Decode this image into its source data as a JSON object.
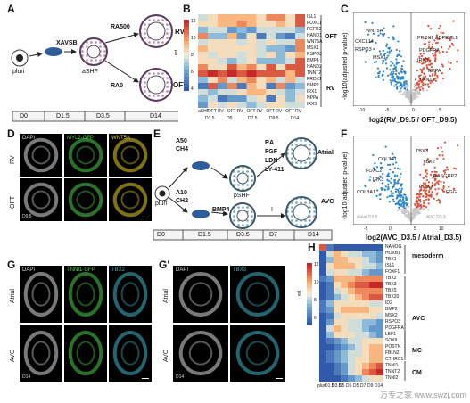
{
  "panelA": {
    "letter": "A",
    "pluri": "pluri",
    "xavsb": "XAVSB",
    "ashf": "aSHF",
    "ra500": "RA500",
    "ra0": "RA0",
    "rv": "RV",
    "oft": "OFT",
    "timeline": [
      "D0",
      "D1.5",
      "D3.5",
      "D14"
    ]
  },
  "panelB": {
    "letter": "B",
    "colorbar_label": "vst",
    "colorbar_ticks": [
      "12",
      "10",
      "8",
      "6",
      "4"
    ],
    "genes_oft": [
      "ISL1",
      "FOXC1",
      "FGFR2",
      "HAND1",
      "WNT5A",
      "MSX1",
      "RSPO3",
      "BMP4"
    ],
    "genes_rv": [
      "HAND2",
      "TNNT2",
      "PRDX1",
      "BMP2",
      "IRX1",
      "NPPA",
      "IRX3"
    ],
    "group_oft": "OFT",
    "group_rv": "RV",
    "col_labels": [
      "aSHF",
      "OFT",
      "RV",
      "OFT",
      "RV",
      "OFT",
      "RV",
      "OFT",
      "RV",
      "OFT",
      "RV"
    ],
    "day_labels": [
      "D3.5",
      "D5",
      "D7.5",
      "D9.5",
      "D14"
    ],
    "matrix": [
      [
        8,
        9,
        10,
        10,
        10,
        10,
        9,
        11,
        11,
        9,
        12
      ],
      [
        9,
        9,
        10,
        10,
        11,
        10,
        9,
        9,
        10,
        9,
        12
      ],
      [
        7,
        8,
        8,
        6,
        7,
        6,
        8,
        8,
        8,
        8,
        7
      ],
      [
        11,
        7,
        7,
        10,
        6,
        9,
        5,
        8,
        6,
        5,
        8
      ],
      [
        8,
        9,
        9,
        9,
        8,
        9,
        8,
        9,
        8,
        8,
        11
      ],
      [
        10,
        9,
        9,
        9,
        9,
        9,
        8,
        7,
        7,
        6,
        11
      ],
      [
        9,
        8,
        9,
        9,
        8,
        9,
        8,
        9,
        7,
        9,
        10
      ],
      [
        9,
        9,
        8,
        7,
        8,
        9,
        7,
        7,
        7,
        8,
        12
      ],
      [
        11,
        9,
        9,
        12,
        10,
        11,
        9,
        12,
        9,
        12,
        12
      ],
      [
        12,
        13,
        12,
        13,
        12,
        13,
        12,
        12,
        12,
        10,
        12
      ],
      [
        7,
        9,
        11,
        8,
        10,
        11,
        9,
        10,
        8,
        10,
        8
      ],
      [
        5,
        12,
        6,
        11,
        5,
        10,
        9,
        5,
        11,
        6,
        7
      ],
      [
        8,
        7,
        8,
        8,
        9,
        10,
        10,
        9,
        8,
        7,
        8
      ],
      [
        7,
        8,
        5,
        6,
        6,
        8,
        9,
        5,
        9,
        7,
        9
      ],
      [
        6,
        9,
        8,
        9,
        8,
        7,
        8,
        9,
        9,
        8,
        8
      ]
    ]
  },
  "panelC": {
    "letter": "C",
    "xlabel": "log2(RV_D9.5 / OFT_D9.5)",
    "ylabel": "-log10(adjusted p-value)",
    "left_genes": [
      "WNT5A",
      "CXCL14",
      "RSPO3",
      "MSX1"
    ],
    "right_genes": [
      "PRDX1",
      "ADPRHL1",
      "PDGFRA",
      "IRX3",
      "NPPA",
      "TNNT2"
    ],
    "xticks": [
      "-10",
      "-5",
      "0",
      "5"
    ]
  },
  "panelD": {
    "letter": "D",
    "rows": [
      "RV",
      "OFT"
    ],
    "cols": [
      "DAPI",
      "MYL2-GFP",
      "WNT5A"
    ],
    "day": "D9.5",
    "col_colors": [
      "#dddddd",
      "#4bd14b",
      "#e8d020"
    ]
  },
  "panelE": {
    "letter": "E",
    "a50": "A50",
    "ch4": "CH4",
    "a10": "A10",
    "ch2": "CH2",
    "bmp4": "BMP4",
    "pshf": "pSHF",
    "pluri": "pluri",
    "ra": "RA",
    "fgf": "FGF",
    "ldn": "LDN",
    "ly": "LY-411",
    "roman": "I",
    "atrial": "Atrial",
    "avc": "AVC",
    "timeline": [
      "D0",
      "D1.5",
      "D3.5",
      "D7",
      "D14"
    ]
  },
  "panelF": {
    "letter": "F",
    "xlabel": "log2(AVC_D3.5 / Atrial_D3.5)",
    "ylabel": "-log10(adjusted p-value)",
    "left_genes": [
      "COL3A1",
      "FOXC2",
      "IRX3",
      "COL8A1"
    ],
    "right_genes": [
      "TBX3",
      "TBX2",
      "RASGRP2",
      "PITX2",
      "FGG"
    ],
    "xticks": [
      "-5",
      "0",
      "5",
      "10"
    ],
    "cornerL": "Atrial D3.5",
    "cornerR": "AVC D3.5"
  },
  "panelG": {
    "letter": "G",
    "rows": [
      "Atrial",
      "AVC"
    ],
    "cols": [
      "DAPI",
      "TNNI1-GFP",
      "TBX2"
    ],
    "day": "D14",
    "col_colors": [
      "#dddddd",
      "#4bd14b",
      "#3fb8c8"
    ]
  },
  "panelG2": {
    "letter": "G'",
    "rows": [
      "Atrial",
      "AVC"
    ],
    "cols": [
      "DAPI",
      "TBX3"
    ],
    "day": "D14",
    "col_colors": [
      "#dddddd",
      "#3fb8c8"
    ]
  },
  "panelH": {
    "letter": "H",
    "colorbar_label": "vst",
    "colorbar_ticks": [
      "12",
      "10",
      "8",
      "6"
    ],
    "genes": [
      "NANOG",
      "HOXB1",
      "TBX1",
      "ISL1",
      "FOXF1",
      "TBX2",
      "TBX3",
      "TBX5",
      "TBX20",
      "ID2",
      "BMP2",
      "MSX2",
      "RSPO3",
      "PDGFRA",
      "LEF1",
      "SOX9",
      "POSTN",
      "FBLN2",
      "CTHRC1",
      "TNNI1",
      "TNNT2",
      "TNNI2"
    ],
    "groups": [
      "mesoderm",
      "AVC",
      "MC",
      "CM"
    ],
    "col_labels": [
      "pluri",
      "D1.5",
      "D3.5",
      "D5",
      "D5",
      "D5",
      "D7",
      "D9",
      "D14"
    ],
    "matrix": [
      [
        12,
        5,
        4,
        4,
        4,
        4,
        4,
        4,
        4
      ],
      [
        4,
        8,
        10,
        9,
        8,
        8,
        7,
        7,
        6
      ],
      [
        4,
        7,
        10,
        10,
        9,
        9,
        8,
        7,
        6
      ],
      [
        4,
        9,
        10,
        10,
        10,
        9,
        8,
        8,
        7
      ],
      [
        4,
        8,
        9,
        9,
        8,
        8,
        7,
        6,
        6
      ],
      [
        5,
        6,
        10,
        10,
        10,
        11,
        11,
        11,
        11
      ],
      [
        4,
        5,
        9,
        10,
        11,
        12,
        12,
        13,
        13
      ],
      [
        4,
        5,
        8,
        9,
        10,
        11,
        11,
        11,
        11
      ],
      [
        4,
        5,
        7,
        8,
        9,
        10,
        11,
        12,
        12
      ],
      [
        5,
        7,
        9,
        9,
        9,
        9,
        9,
        8,
        8
      ],
      [
        5,
        6,
        9,
        10,
        10,
        10,
        10,
        9,
        9
      ],
      [
        4,
        5,
        8,
        9,
        9,
        9,
        9,
        9,
        8
      ],
      [
        4,
        6,
        9,
        9,
        8,
        8,
        7,
        7,
        6
      ],
      [
        4,
        8,
        10,
        9,
        8,
        8,
        7,
        6,
        6
      ],
      [
        4,
        7,
        9,
        9,
        9,
        8,
        8,
        7,
        6
      ],
      [
        4,
        5,
        6,
        7,
        8,
        8,
        9,
        9,
        9
      ],
      [
        4,
        4,
        5,
        6,
        7,
        8,
        9,
        10,
        10
      ],
      [
        4,
        5,
        6,
        7,
        8,
        8,
        9,
        10,
        10
      ],
      [
        4,
        5,
        6,
        7,
        8,
        9,
        9,
        10,
        10
      ],
      [
        4,
        4,
        5,
        6,
        8,
        9,
        10,
        11,
        12
      ],
      [
        4,
        4,
        5,
        6,
        8,
        9,
        11,
        12,
        13
      ],
      [
        4,
        4,
        4,
        5,
        6,
        7,
        8,
        9,
        9
      ]
    ]
  },
  "watermark": "万专之家 www.swzj.com"
}
